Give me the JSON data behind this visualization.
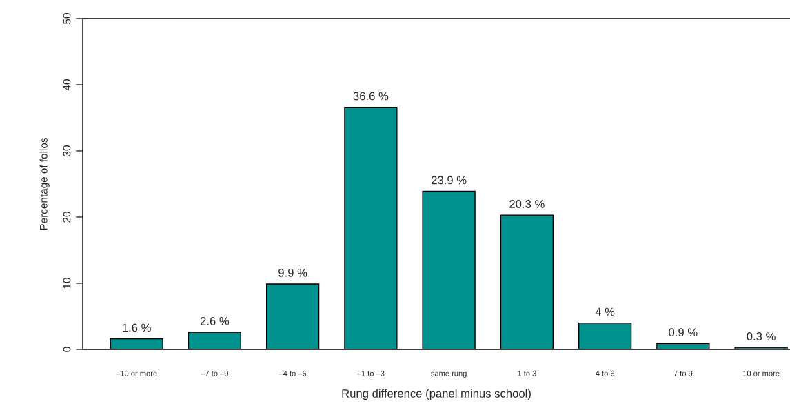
{
  "chart_data": {
    "type": "bar",
    "xlabel": "Rung difference (panel minus school)",
    "ylabel": "Percentage of folios",
    "categories": [
      "–10 or more",
      "–7 to –9",
      "–4 to –6",
      "–1 to –3",
      "same rung",
      "1 to 3",
      "4 to 6",
      "7 to 9",
      "10 or more"
    ],
    "values": [
      1.6,
      2.6,
      9.9,
      36.6,
      23.9,
      20.3,
      4,
      0.9,
      0.3
    ],
    "value_labels": [
      "1.6 %",
      "2.6 %",
      "9.9 %",
      "36.6 %",
      "23.9 %",
      "20.3 %",
      "4 %",
      "0.9 %",
      "0.3 %"
    ],
    "color": "#00928f",
    "ylim": [
      0,
      50
    ],
    "yticks": [
      0,
      10,
      20,
      30,
      40,
      50
    ],
    "grid": false,
    "legend": false,
    "ref_lines": [
      {
        "axis": "y",
        "value": 0,
        "color": "#000000"
      },
      {
        "axis": "y",
        "value": 50,
        "color": "#000000"
      }
    ]
  }
}
